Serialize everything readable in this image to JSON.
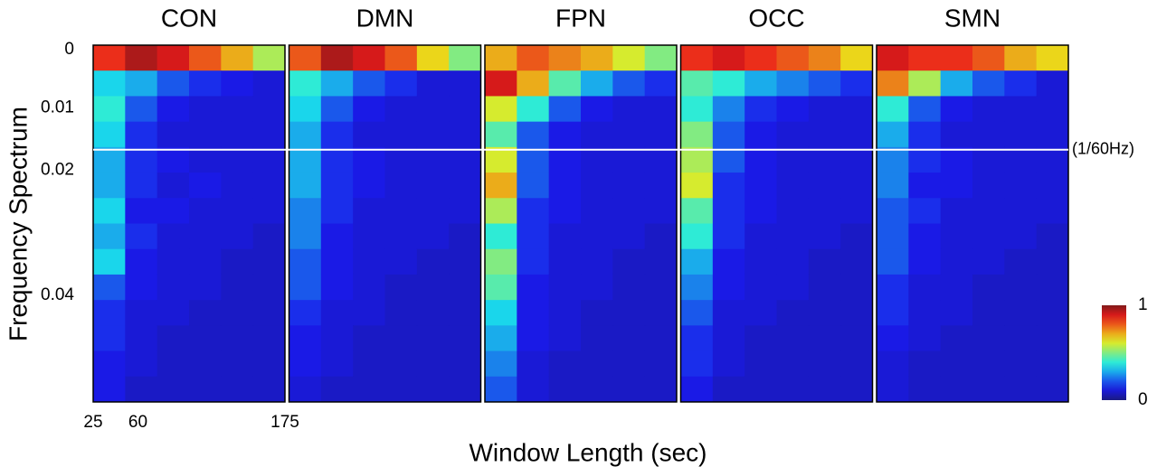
{
  "chart_data": {
    "type": "heatmap",
    "xlabel": "Window Length (sec)",
    "ylabel": "Frequency Spectrum",
    "xlim": [
      25,
      175
    ],
    "xticks": [
      25,
      60,
      175
    ],
    "ylim": [
      0,
      0.057
    ],
    "yticks": [
      0,
      0.01,
      0.02,
      0.04
    ],
    "zlim": [
      0,
      1
    ],
    "colorbar_ticks": [
      0,
      1
    ],
    "reference_line": {
      "value": 0.0167,
      "label": "(1/60Hz)",
      "color": "#ffffff"
    },
    "panels": [
      {
        "title": "CON",
        "values": [
          [
            0.85,
            0.95,
            0.9,
            0.8,
            0.7,
            0.55
          ],
          [
            0.35,
            0.3,
            0.2,
            0.15,
            0.12,
            0.1
          ],
          [
            0.4,
            0.2,
            0.12,
            0.1,
            0.1,
            0.1
          ],
          [
            0.35,
            0.15,
            0.1,
            0.1,
            0.1,
            0.1
          ],
          [
            0.3,
            0.15,
            0.12,
            0.1,
            0.1,
            0.1
          ],
          [
            0.3,
            0.15,
            0.1,
            0.12,
            0.1,
            0.1
          ],
          [
            0.35,
            0.12,
            0.12,
            0.1,
            0.1,
            0.1
          ],
          [
            0.3,
            0.15,
            0.1,
            0.1,
            0.1,
            0.08
          ],
          [
            0.35,
            0.12,
            0.1,
            0.1,
            0.08,
            0.08
          ],
          [
            0.2,
            0.12,
            0.1,
            0.1,
            0.08,
            0.08
          ],
          [
            0.15,
            0.1,
            0.1,
            0.08,
            0.08,
            0.08
          ],
          [
            0.15,
            0.1,
            0.08,
            0.08,
            0.08,
            0.08
          ],
          [
            0.12,
            0.1,
            0.08,
            0.08,
            0.08,
            0.08
          ],
          [
            0.12,
            0.08,
            0.08,
            0.08,
            0.08,
            0.08
          ]
        ]
      },
      {
        "title": "DMN",
        "values": [
          [
            0.8,
            0.95,
            0.9,
            0.8,
            0.65,
            0.5
          ],
          [
            0.4,
            0.3,
            0.2,
            0.15,
            0.1,
            0.1
          ],
          [
            0.35,
            0.2,
            0.12,
            0.1,
            0.1,
            0.1
          ],
          [
            0.3,
            0.15,
            0.1,
            0.1,
            0.1,
            0.1
          ],
          [
            0.3,
            0.15,
            0.12,
            0.1,
            0.1,
            0.1
          ],
          [
            0.3,
            0.15,
            0.12,
            0.1,
            0.1,
            0.1
          ],
          [
            0.25,
            0.15,
            0.1,
            0.1,
            0.1,
            0.1
          ],
          [
            0.25,
            0.12,
            0.1,
            0.1,
            0.1,
            0.08
          ],
          [
            0.2,
            0.12,
            0.1,
            0.1,
            0.08,
            0.08
          ],
          [
            0.2,
            0.12,
            0.1,
            0.08,
            0.08,
            0.08
          ],
          [
            0.15,
            0.1,
            0.1,
            0.08,
            0.08,
            0.08
          ],
          [
            0.12,
            0.1,
            0.08,
            0.08,
            0.08,
            0.08
          ],
          [
            0.12,
            0.1,
            0.08,
            0.08,
            0.08,
            0.08
          ],
          [
            0.1,
            0.08,
            0.08,
            0.08,
            0.08,
            0.08
          ]
        ]
      },
      {
        "title": "FPN",
        "values": [
          [
            0.7,
            0.8,
            0.75,
            0.7,
            0.6,
            0.5
          ],
          [
            0.9,
            0.7,
            0.45,
            0.3,
            0.2,
            0.15
          ],
          [
            0.6,
            0.4,
            0.2,
            0.12,
            0.1,
            0.1
          ],
          [
            0.45,
            0.2,
            0.12,
            0.1,
            0.1,
            0.1
          ],
          [
            0.6,
            0.2,
            0.12,
            0.1,
            0.1,
            0.1
          ],
          [
            0.7,
            0.2,
            0.12,
            0.1,
            0.1,
            0.1
          ],
          [
            0.55,
            0.15,
            0.12,
            0.1,
            0.1,
            0.1
          ],
          [
            0.4,
            0.15,
            0.1,
            0.1,
            0.1,
            0.08
          ],
          [
            0.5,
            0.15,
            0.1,
            0.1,
            0.08,
            0.08
          ],
          [
            0.45,
            0.12,
            0.1,
            0.1,
            0.08,
            0.08
          ],
          [
            0.35,
            0.12,
            0.1,
            0.08,
            0.08,
            0.08
          ],
          [
            0.3,
            0.12,
            0.1,
            0.08,
            0.08,
            0.08
          ],
          [
            0.25,
            0.1,
            0.08,
            0.08,
            0.08,
            0.08
          ],
          [
            0.2,
            0.1,
            0.08,
            0.08,
            0.08,
            0.08
          ]
        ]
      },
      {
        "title": "OCC",
        "values": [
          [
            0.85,
            0.9,
            0.85,
            0.8,
            0.75,
            0.65
          ],
          [
            0.45,
            0.4,
            0.3,
            0.25,
            0.2,
            0.15
          ],
          [
            0.4,
            0.25,
            0.15,
            0.12,
            0.1,
            0.1
          ],
          [
            0.5,
            0.2,
            0.12,
            0.1,
            0.1,
            0.1
          ],
          [
            0.55,
            0.2,
            0.12,
            0.1,
            0.1,
            0.1
          ],
          [
            0.6,
            0.15,
            0.12,
            0.1,
            0.1,
            0.1
          ],
          [
            0.45,
            0.15,
            0.12,
            0.1,
            0.1,
            0.1
          ],
          [
            0.4,
            0.15,
            0.1,
            0.1,
            0.1,
            0.08
          ],
          [
            0.3,
            0.12,
            0.1,
            0.1,
            0.08,
            0.08
          ],
          [
            0.25,
            0.12,
            0.1,
            0.1,
            0.08,
            0.08
          ],
          [
            0.2,
            0.1,
            0.1,
            0.08,
            0.08,
            0.08
          ],
          [
            0.15,
            0.1,
            0.08,
            0.08,
            0.08,
            0.08
          ],
          [
            0.15,
            0.1,
            0.08,
            0.08,
            0.08,
            0.08
          ],
          [
            0.12,
            0.08,
            0.08,
            0.08,
            0.08,
            0.08
          ]
        ]
      },
      {
        "title": "SMN",
        "values": [
          [
            0.9,
            0.85,
            0.85,
            0.8,
            0.7,
            0.65
          ],
          [
            0.75,
            0.55,
            0.3,
            0.2,
            0.15,
            0.1
          ],
          [
            0.4,
            0.2,
            0.12,
            0.1,
            0.1,
            0.1
          ],
          [
            0.3,
            0.15,
            0.1,
            0.1,
            0.1,
            0.1
          ],
          [
            0.25,
            0.15,
            0.12,
            0.1,
            0.1,
            0.1
          ],
          [
            0.25,
            0.12,
            0.12,
            0.1,
            0.1,
            0.1
          ],
          [
            0.2,
            0.15,
            0.1,
            0.1,
            0.1,
            0.1
          ],
          [
            0.2,
            0.12,
            0.1,
            0.1,
            0.1,
            0.08
          ],
          [
            0.2,
            0.12,
            0.1,
            0.1,
            0.08,
            0.08
          ],
          [
            0.15,
            0.1,
            0.1,
            0.08,
            0.08,
            0.08
          ],
          [
            0.15,
            0.1,
            0.1,
            0.08,
            0.08,
            0.08
          ],
          [
            0.12,
            0.1,
            0.08,
            0.08,
            0.08,
            0.08
          ],
          [
            0.1,
            0.08,
            0.08,
            0.08,
            0.08,
            0.08
          ],
          [
            0.1,
            0.08,
            0.08,
            0.08,
            0.08,
            0.08
          ]
        ]
      }
    ]
  }
}
